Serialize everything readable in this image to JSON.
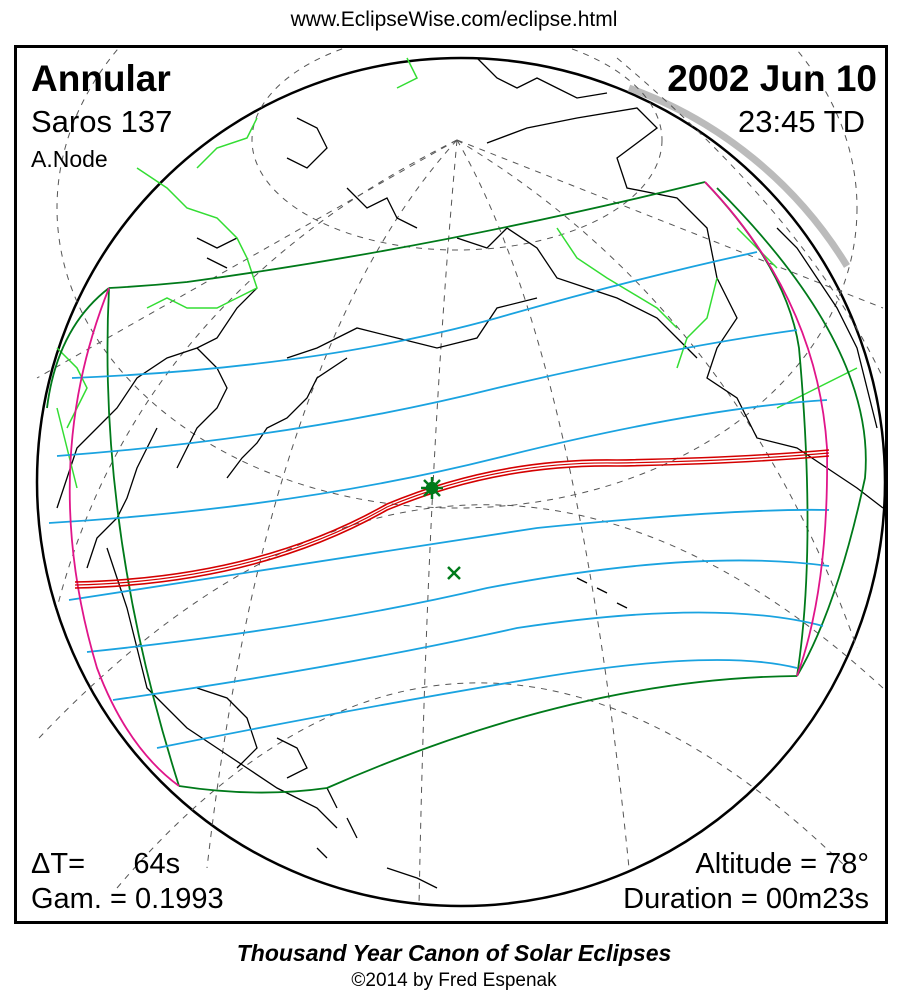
{
  "source_url": "www.EclipseWise.com/eclipse.html",
  "eclipse": {
    "type": "Annular",
    "saros": "Saros 137",
    "node": "A.Node",
    "date": "2002 Jun 10",
    "time": "23:45 TD",
    "delta_t": "ΔT=      64s",
    "gamma": "Gam. = 0.1993",
    "altitude": "Altitude = 78°",
    "duration": "Duration = 00m23s"
  },
  "footer": {
    "canon": "Thousand Year Canon of Solar Eclipses",
    "copyright": "©2014 by Fred Espenak"
  },
  "colors": {
    "central_path": "#d40000",
    "penumbral_limits": "#007a1a",
    "eclipse_curves": "#1aa3e0",
    "rise_set_curves": "#e0158a",
    "borders": "#33dd33",
    "coastlines": "#000000",
    "graticule": "#555555",
    "greatest_eclipse_marker": "#007a1a"
  }
}
